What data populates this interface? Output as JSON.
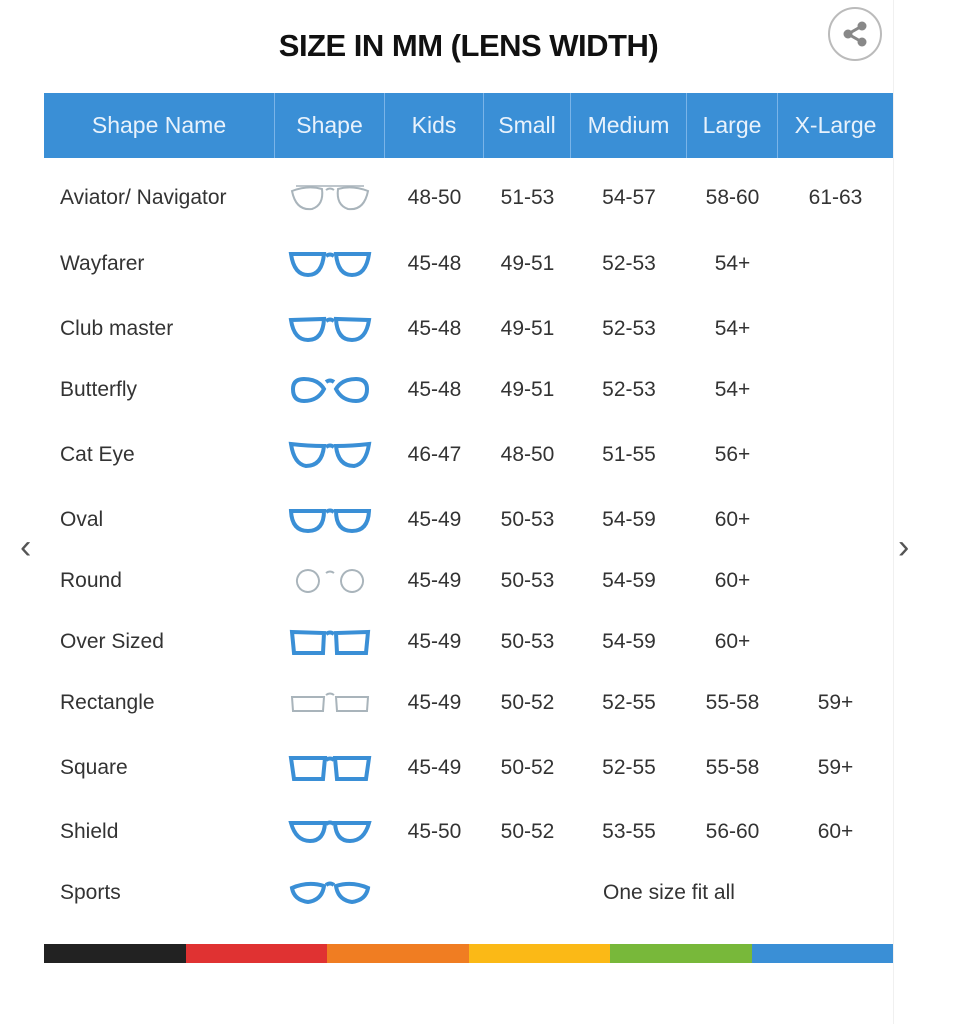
{
  "title": "SIZE IN MM (LENS WIDTH)",
  "share_icon": "share-icon",
  "colors": {
    "header": "#3a8fd6",
    "frame_blue": "#3a8fd6",
    "frame_gray": "#a9b4bb",
    "bar": [
      "#222222",
      "#e03232",
      "#f07d22",
      "#fbb916",
      "#78b83a",
      "#3a8fd6"
    ]
  },
  "headers": [
    "Shape Name",
    "Shape",
    "Kids",
    "Small",
    "Medium",
    "Large",
    "X-Large"
  ],
  "rows": [
    {
      "name": "Aviator/ Navigator",
      "shape": "aviator",
      "color": "gray",
      "sizes": [
        "48-50",
        "51-53",
        "54-57",
        "58-60",
        "61-63"
      ]
    },
    {
      "name": "Wayfarer",
      "shape": "wayfarer",
      "color": "blue",
      "sizes": [
        "45-48",
        "49-51",
        "52-53",
        "54+",
        ""
      ]
    },
    {
      "name": "Club master",
      "shape": "clubmaster",
      "color": "mixed",
      "sizes": [
        "45-48",
        "49-51",
        "52-53",
        "54+",
        ""
      ]
    },
    {
      "name": "Butterfly",
      "shape": "butterfly",
      "color": "blue",
      "sizes": [
        "45-48",
        "49-51",
        "52-53",
        "54+",
        ""
      ]
    },
    {
      "name": "Cat Eye",
      "shape": "cateye",
      "color": "blue",
      "sizes": [
        "46-47",
        "48-50",
        "51-55",
        "56+",
        ""
      ]
    },
    {
      "name": "Oval",
      "shape": "oval",
      "color": "blue",
      "sizes": [
        "45-49",
        "50-53",
        "54-59",
        "60+",
        ""
      ]
    },
    {
      "name": "Round",
      "shape": "round",
      "color": "gray",
      "sizes": [
        "45-49",
        "50-53",
        "54-59",
        "60+",
        ""
      ]
    },
    {
      "name": "Over Sized",
      "shape": "oversized",
      "color": "blue",
      "sizes": [
        "45-49",
        "50-53",
        "54-59",
        "60+",
        ""
      ]
    },
    {
      "name": "Rectangle",
      "shape": "rectangle",
      "color": "gray",
      "sizes": [
        "45-49",
        "50-52",
        "52-55",
        "55-58",
        "59+"
      ]
    },
    {
      "name": "Square",
      "shape": "square",
      "color": "blue",
      "sizes": [
        "45-49",
        "50-52",
        "52-55",
        "55-58",
        "59+"
      ]
    },
    {
      "name": "Shield",
      "shape": "shield",
      "color": "mixed",
      "sizes": [
        "45-50",
        "50-52",
        "53-55",
        "56-60",
        "60+"
      ]
    },
    {
      "name": "Sports",
      "shape": "sports",
      "color": "blue",
      "sizes": [],
      "note": "One size fit all"
    }
  ],
  "nav": {
    "prev": "‹",
    "next": "›"
  }
}
